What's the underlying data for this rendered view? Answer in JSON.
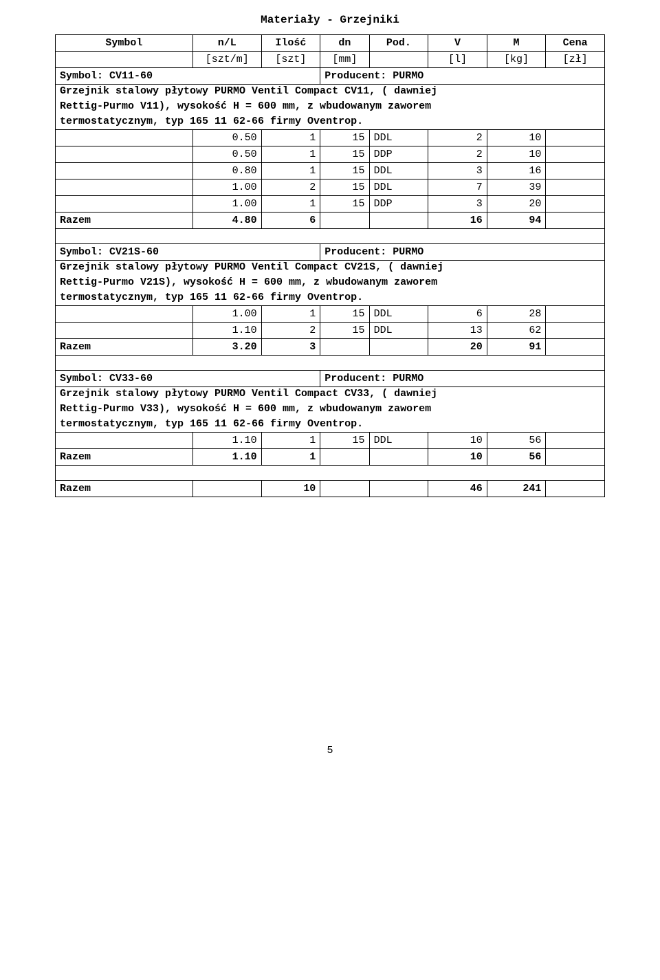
{
  "title": "Materiały - Grzejniki",
  "headers": {
    "c1": "Symbol",
    "c2": "n/L",
    "c3": "Ilość",
    "c4": "dn",
    "c5": "Pod.",
    "c6": "V",
    "c7": "M",
    "c8": "Cena"
  },
  "units": {
    "c2": "[szt/m]",
    "c3": "[szt]",
    "c4": "[mm]",
    "c6": "[l]",
    "c7": "[kg]",
    "c8": "[zł]"
  },
  "sections": [
    {
      "symprod": {
        "symbol": "Symbol: CV11-60",
        "producer": "Producent: PURMO"
      },
      "desc": [
        "Grzejnik stalowy płytowy PURMO Ventil Compact CV11, ( dawniej",
        "Rettig-Purmo V11), wysokość H = 600 mm, z wbudowanym zaworem",
        "termostatycznym, typ 165 11 62-66 firmy Oventrop."
      ],
      "rows": [
        {
          "c2": "0.50",
          "c3": "1",
          "c4": "15",
          "c5": "DDL",
          "c6": "2",
          "c7": "10"
        },
        {
          "c2": "0.50",
          "c3": "1",
          "c4": "15",
          "c5": "DDP",
          "c6": "2",
          "c7": "10"
        },
        {
          "c2": "0.80",
          "c3": "1",
          "c4": "15",
          "c5": "DDL",
          "c6": "3",
          "c7": "16"
        },
        {
          "c2": "1.00",
          "c3": "2",
          "c4": "15",
          "c5": "DDL",
          "c6": "7",
          "c7": "39"
        },
        {
          "c2": "1.00",
          "c3": "1",
          "c4": "15",
          "c5": "DDP",
          "c6": "3",
          "c7": "20"
        }
      ],
      "sum": {
        "label": "Razem",
        "c2": "4.80",
        "c3": "6",
        "c6": "16",
        "c7": "94"
      }
    },
    {
      "symprod": {
        "symbol": "Symbol: CV21S-60",
        "producer": "Producent: PURMO"
      },
      "desc": [
        "Grzejnik stalowy płytowy PURMO Ventil Compact CV21S, ( dawniej",
        "Rettig-Purmo V21S), wysokość H = 600 mm, z wbudowanym zaworem",
        "termostatycznym, typ 165 11 62-66 firmy Oventrop."
      ],
      "rows": [
        {
          "c2": "1.00",
          "c3": "1",
          "c4": "15",
          "c5": "DDL",
          "c6": "6",
          "c7": "28"
        },
        {
          "c2": "1.10",
          "c3": "2",
          "c4": "15",
          "c5": "DDL",
          "c6": "13",
          "c7": "62"
        }
      ],
      "sum": {
        "label": "Razem",
        "c2": "3.20",
        "c3": "3",
        "c6": "20",
        "c7": "91"
      }
    },
    {
      "symprod": {
        "symbol": "Symbol: CV33-60",
        "producer": "Producent: PURMO"
      },
      "desc": [
        "Grzejnik stalowy płytowy PURMO Ventil Compact CV33, ( dawniej",
        "Rettig-Purmo V33), wysokość H = 600 mm, z wbudowanym zaworem",
        "termostatycznym, typ 165 11 62-66 firmy Oventrop."
      ],
      "rows": [
        {
          "c2": "1.10",
          "c3": "1",
          "c4": "15",
          "c5": "DDL",
          "c6": "10",
          "c7": "56"
        }
      ],
      "sum": {
        "label": "Razem",
        "c2": "1.10",
        "c3": "1",
        "c6": "10",
        "c7": "56"
      }
    }
  ],
  "grandTotal": {
    "label": "Razem",
    "c3": "10",
    "c6": "46",
    "c7": "241"
  },
  "pageNumber": "5"
}
